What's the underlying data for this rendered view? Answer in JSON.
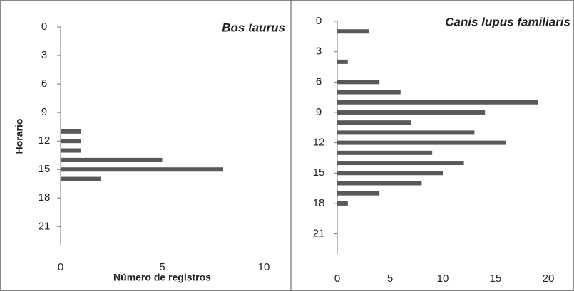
{
  "chart_data": [
    {
      "type": "bar",
      "orientation": "horizontal",
      "title": "Bos taurus",
      "ylabel": "Horario",
      "xlabel": "Número de registros",
      "y": [
        11,
        12,
        13,
        14,
        15,
        16
      ],
      "values": [
        1,
        1,
        1,
        5,
        8,
        2
      ],
      "color": "#595959",
      "xlim": [
        0,
        10
      ],
      "xticks": [
        0,
        5,
        10
      ],
      "ylim": [
        0,
        23
      ],
      "yticks": [
        0,
        3,
        6,
        9,
        12,
        15,
        18,
        21
      ]
    },
    {
      "type": "bar",
      "orientation": "horizontal",
      "title": "Canis lupus familiaris",
      "y": [
        1,
        4,
        6,
        7,
        8,
        9,
        10,
        11,
        12,
        13,
        14,
        15,
        16,
        17,
        18
      ],
      "values": [
        3,
        1,
        4,
        6,
        19,
        14,
        7,
        13,
        16,
        9,
        12,
        10,
        8,
        4,
        1
      ],
      "color": "#595959",
      "xlim": [
        0,
        20
      ],
      "xticks": [
        0,
        5,
        10,
        15,
        20
      ],
      "ylim": [
        0,
        23
      ],
      "yticks": [
        0,
        3,
        6,
        9,
        12,
        15,
        18,
        21
      ]
    }
  ]
}
